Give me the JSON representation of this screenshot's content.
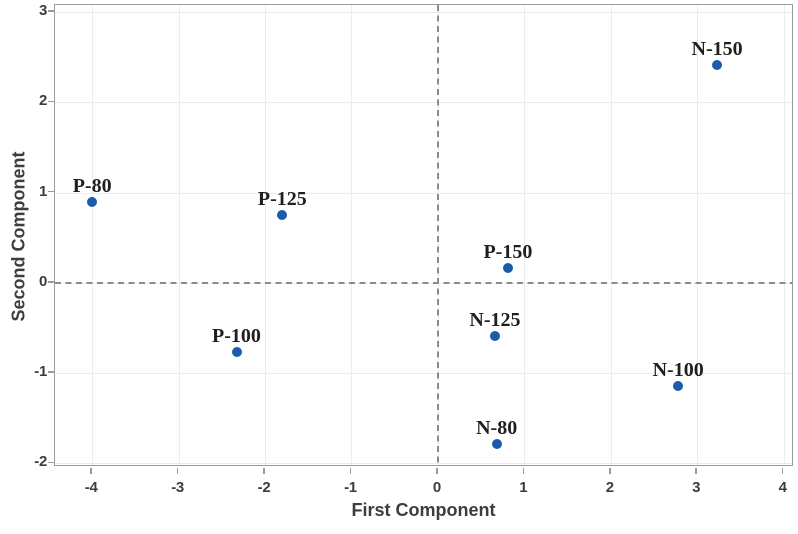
{
  "chart_data": {
    "type": "scatter",
    "title": "",
    "xlabel": "First Component",
    "ylabel": "Second Component",
    "xlim": [
      -4.43,
      4.12
    ],
    "ylim": [
      -2.04,
      3.08
    ],
    "x_ticks": [
      -4,
      -3,
      -2,
      -1,
      0,
      1,
      2,
      3,
      4
    ],
    "y_ticks": [
      -2,
      -1,
      0,
      1,
      2,
      3
    ],
    "grid": true,
    "legend": "none",
    "reference_lines": {
      "x": 0,
      "y": 0,
      "style": "dashed"
    },
    "series": [
      {
        "name": "scores",
        "points": [
          {
            "label": "P-80",
            "x": -4.0,
            "y": 0.9
          },
          {
            "label": "P-125",
            "x": -1.8,
            "y": 0.75
          },
          {
            "label": "P-100",
            "x": -2.33,
            "y": -0.76
          },
          {
            "label": "P-150",
            "x": 0.81,
            "y": 0.17
          },
          {
            "label": "N-150",
            "x": 3.23,
            "y": 2.42
          },
          {
            "label": "N-125",
            "x": 0.66,
            "y": -0.59
          },
          {
            "label": "N-100",
            "x": 2.78,
            "y": -1.14
          },
          {
            "label": "N-80",
            "x": 0.68,
            "y": -1.79
          }
        ]
      }
    ],
    "colors": {
      "point": "#1b5bad",
      "grid": "#ececec",
      "plot_border": "#9a9a9a",
      "reference_line": "#8c8c8c",
      "axis_text": "#3d3d3d",
      "point_label_text": "#1f1f1f",
      "background": "#ffffff"
    }
  }
}
